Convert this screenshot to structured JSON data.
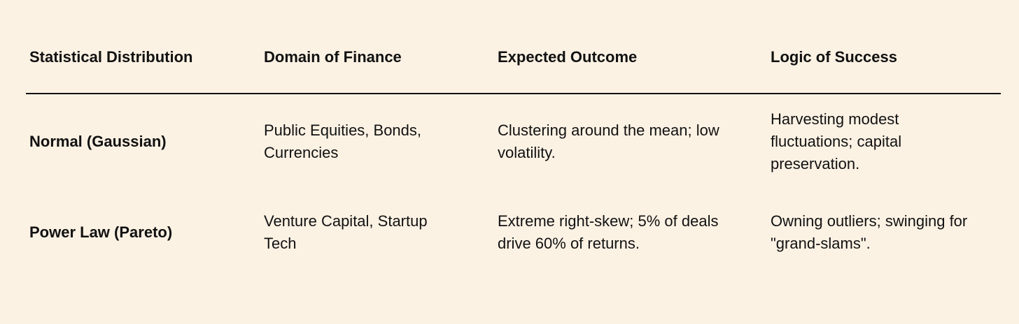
{
  "table": {
    "header": [
      "Statistical Distribution",
      "Domain of Finance",
      "Expected Outcome",
      "Logic of Success"
    ],
    "rows": [
      [
        [
          "Normal (Gaussian)"
        ],
        [
          "Public Equities, Bonds,",
          "Currencies"
        ],
        [
          "Clustering around the mean; low",
          "volatility."
        ],
        [
          "Harvesting modest",
          "fluctuations; capital",
          "preservation."
        ]
      ],
      [
        [
          "Power Law (Pareto)"
        ],
        [
          "Venture Capital, Startup",
          "Tech"
        ],
        [
          "Extreme right-skew; 5% of deals",
          "drive 60% of returns."
        ],
        [
          "Owning outliers; swinging for",
          "\"grand-slams\"."
        ]
      ]
    ]
  }
}
